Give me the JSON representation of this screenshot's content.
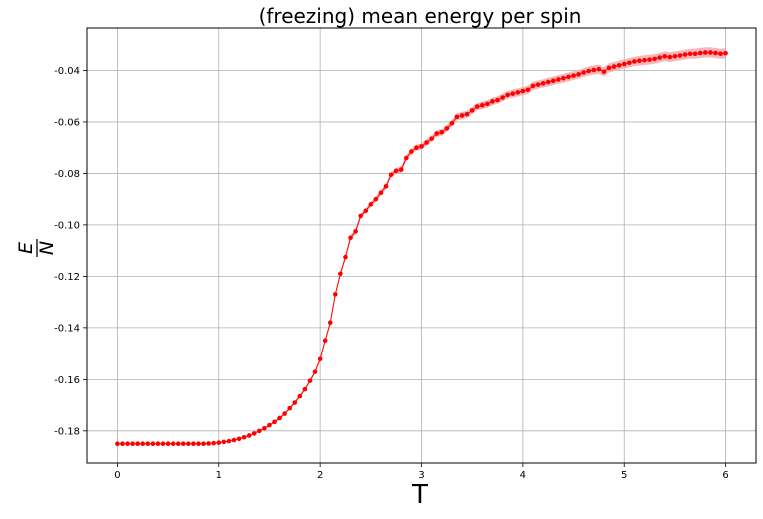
{
  "chart_data": {
    "type": "line",
    "title": "(freezing) mean energy per spin",
    "xlabel": "T",
    "ylabel_numerator": "E",
    "ylabel_denominator": "N",
    "xlim": [
      -0.3,
      6.3
    ],
    "ylim": [
      -0.1925,
      -0.0235
    ],
    "xticks": [
      0,
      1,
      2,
      3,
      4,
      5,
      6
    ],
    "xtick_labels": [
      "0",
      "1",
      "2",
      "3",
      "4",
      "5",
      "6"
    ],
    "yticks": [
      -0.18,
      -0.16,
      -0.14,
      -0.12,
      -0.1,
      -0.08,
      -0.06,
      -0.04
    ],
    "ytick_labels": [
      "-0.18",
      "-0.16",
      "-0.14",
      "-0.12",
      "-0.10",
      "-0.08",
      "-0.06",
      "-0.04"
    ],
    "grid": true,
    "series": [
      {
        "color": "#ff0000",
        "band_color": "#f4a0a6",
        "marker": "dot",
        "x": [
          0.0,
          0.05,
          0.1,
          0.15,
          0.2,
          0.25,
          0.3,
          0.35,
          0.4,
          0.45,
          0.5,
          0.55,
          0.6,
          0.65,
          0.7,
          0.75,
          0.8,
          0.85,
          0.9,
          0.95,
          1.0,
          1.05,
          1.1,
          1.15,
          1.2,
          1.25,
          1.3,
          1.35,
          1.4,
          1.45,
          1.5,
          1.55,
          1.6,
          1.65,
          1.7,
          1.75,
          1.8,
          1.85,
          1.9,
          1.95,
          2.0,
          2.05,
          2.1,
          2.15,
          2.2,
          2.25,
          2.3,
          2.35,
          2.4,
          2.45,
          2.5,
          2.55,
          2.6,
          2.65,
          2.7,
          2.75,
          2.8,
          2.85,
          2.9,
          2.95,
          3.0,
          3.05,
          3.1,
          3.15,
          3.2,
          3.25,
          3.3,
          3.35,
          3.4,
          3.45,
          3.5,
          3.55,
          3.6,
          3.65,
          3.7,
          3.75,
          3.8,
          3.85,
          3.9,
          3.95,
          4.0,
          4.05,
          4.1,
          4.15,
          4.2,
          4.25,
          4.3,
          4.35,
          4.4,
          4.45,
          4.5,
          4.55,
          4.6,
          4.65,
          4.7,
          4.75,
          4.8,
          4.85,
          4.9,
          4.95,
          5.0,
          5.05,
          5.1,
          5.15,
          5.2,
          5.25,
          5.3,
          5.35,
          5.4,
          5.45,
          5.5,
          5.55,
          5.6,
          5.65,
          5.7,
          5.75,
          5.8,
          5.85,
          5.9,
          5.95,
          6.0
        ],
        "y": [
          -0.185,
          -0.185,
          -0.185,
          -0.185,
          -0.185,
          -0.185,
          -0.185,
          -0.185,
          -0.185,
          -0.185,
          -0.185,
          -0.185,
          -0.185,
          -0.185,
          -0.185,
          -0.185,
          -0.185,
          -0.185,
          -0.1849,
          -0.1848,
          -0.1846,
          -0.1843,
          -0.184,
          -0.1836,
          -0.1831,
          -0.1825,
          -0.1818,
          -0.181,
          -0.18,
          -0.179,
          -0.1778,
          -0.1765,
          -0.175,
          -0.1733,
          -0.1712,
          -0.169,
          -0.1665,
          -0.1638,
          -0.1605,
          -0.157,
          -0.152,
          -0.145,
          -0.138,
          -0.127,
          -0.119,
          -0.1125,
          -0.105,
          -0.1025,
          -0.0965,
          -0.0945,
          -0.092,
          -0.09,
          -0.0875,
          -0.085,
          -0.0805,
          -0.079,
          -0.0785,
          -0.074,
          -0.0715,
          -0.07,
          -0.0695,
          -0.068,
          -0.0665,
          -0.0645,
          -0.064,
          -0.0625,
          -0.0605,
          -0.058,
          -0.0575,
          -0.057,
          -0.0555,
          -0.054,
          -0.0535,
          -0.053,
          -0.052,
          -0.0515,
          -0.0505,
          -0.0495,
          -0.049,
          -0.0485,
          -0.048,
          -0.0475,
          -0.046,
          -0.0455,
          -0.045,
          -0.0445,
          -0.044,
          -0.0435,
          -0.043,
          -0.0425,
          -0.042,
          -0.0415,
          -0.0408,
          -0.0402,
          -0.0398,
          -0.0395,
          -0.0405,
          -0.039,
          -0.0385,
          -0.038,
          -0.0375,
          -0.037,
          -0.0365,
          -0.0362,
          -0.036,
          -0.0358,
          -0.0355,
          -0.035,
          -0.0345,
          -0.0348,
          -0.0345,
          -0.0342,
          -0.0338,
          -0.0335,
          -0.0335,
          -0.0332,
          -0.033,
          -0.033,
          -0.0332,
          -0.0335,
          -0.0333
        ],
        "err": [
          0.0001,
          0.0001,
          0.0001,
          0.0001,
          0.0001,
          0.0001,
          0.0001,
          0.0001,
          0.0001,
          0.0001,
          0.0001,
          0.0001,
          0.0001,
          0.0001,
          0.0001,
          0.0001,
          0.0001,
          0.0001,
          0.0001,
          0.0001,
          0.0002,
          0.0002,
          0.0002,
          0.0002,
          0.0002,
          0.0003,
          0.0003,
          0.0003,
          0.0003,
          0.0004,
          0.0004,
          0.0004,
          0.0005,
          0.0005,
          0.0005,
          0.0006,
          0.0006,
          0.0006,
          0.0007,
          0.0007,
          0.0008,
          0.0008,
          0.0008,
          0.0009,
          0.0009,
          0.0009,
          0.001,
          0.001,
          0.001,
          0.001,
          0.001,
          0.0011,
          0.0011,
          0.0011,
          0.0011,
          0.0011,
          0.0012,
          0.0012,
          0.0012,
          0.0012,
          0.0012,
          0.0013,
          0.0013,
          0.0013,
          0.0013,
          0.0013,
          0.0014,
          0.0014,
          0.0014,
          0.0014,
          0.0014,
          0.0014,
          0.0015,
          0.0015,
          0.0015,
          0.0015,
          0.0015,
          0.0015,
          0.0016,
          0.0016,
          0.0016,
          0.0016,
          0.0016,
          0.0016,
          0.0016,
          0.0017,
          0.0017,
          0.0017,
          0.0017,
          0.0017,
          0.0017,
          0.0017,
          0.0017,
          0.0018,
          0.0018,
          0.0018,
          0.0018,
          0.0018,
          0.0018,
          0.0018,
          0.0018,
          0.0018,
          0.0018,
          0.0019,
          0.0019,
          0.0019,
          0.0019,
          0.0019,
          0.0019,
          0.0019,
          0.0019,
          0.0019,
          0.0019,
          0.0019,
          0.002,
          0.002,
          0.002,
          0.002,
          0.002,
          0.002,
          0.002
        ]
      }
    ]
  }
}
